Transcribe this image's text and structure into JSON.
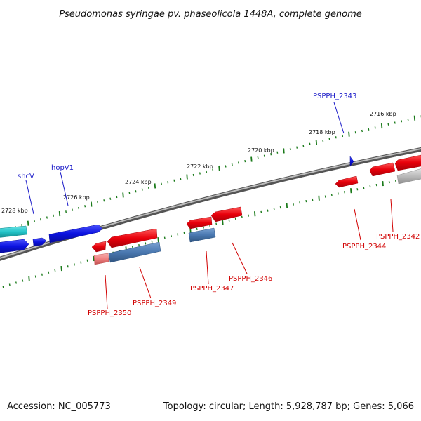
{
  "title": "Pseudomonas syringae pv. phaseolicola 1448A, complete genome",
  "footer": {
    "accession": "Accession: NC_005773",
    "summary": "Topology: circular; Length: 5,928,787 bp; Genes: 5,066"
  },
  "scale_labels": [
    "2716 kbp",
    "2718 kbp",
    "2720 kbp",
    "2722 kbp",
    "2724 kbp",
    "2726 kbp",
    "2728 kbp"
  ],
  "gene_labels": {
    "blue": [
      "PSPPH_2343",
      "shcV",
      "hopV1"
    ],
    "red": [
      "PSPPH_2342",
      "PSPPH_2344",
      "PSPPH_2346",
      "PSPPH_2347",
      "PSPPH_2349",
      "PSPPH_2350"
    ]
  },
  "colors": {
    "forward_gene": "#e8000b",
    "reverse_gene": "#0b12e0",
    "highlight_gene": "#22c4c8",
    "steel_gene": "#4a78b0",
    "pink_gene": "#f08080",
    "gray_gene": "#bdbdbd",
    "tick": "#1a7a1a",
    "backbone": "#7f7f7f",
    "blue_label": "#1a1ac8",
    "red_label": "#d10000"
  }
}
